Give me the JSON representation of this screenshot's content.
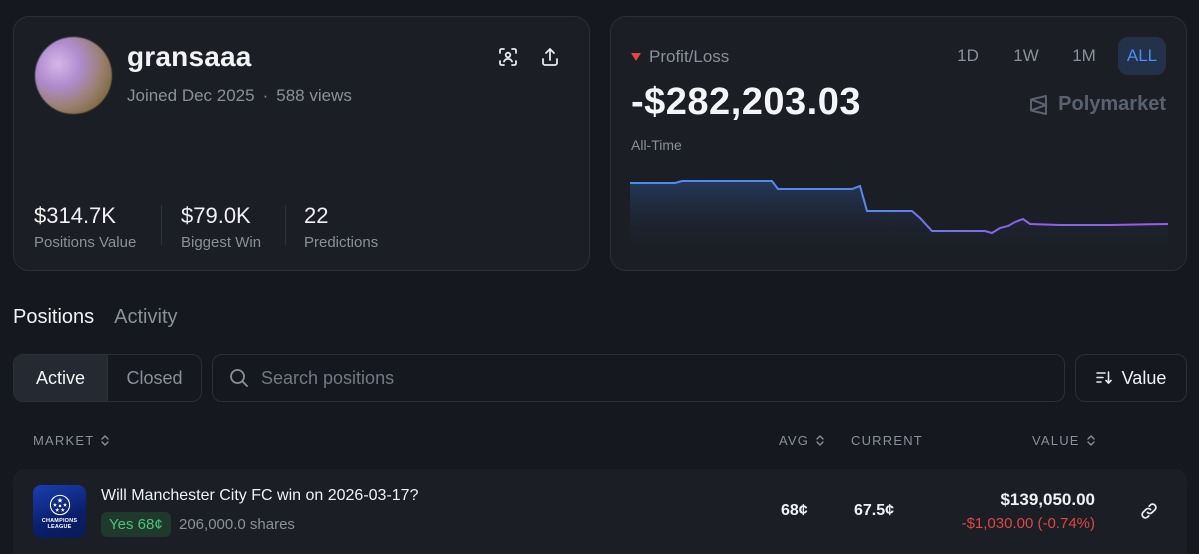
{
  "profile": {
    "username": "gransaaa",
    "joined": "Joined Dec 2025",
    "separator": "·",
    "views": "588 views",
    "actions": [
      {
        "name": "scan-icon"
      },
      {
        "name": "share-icon"
      }
    ],
    "stats": [
      {
        "value": "$314.7K",
        "label": "Positions Value"
      },
      {
        "value": "$79.0K",
        "label": "Biggest Win"
      },
      {
        "value": "22",
        "label": "Predictions"
      }
    ]
  },
  "pnl": {
    "title": "Profit/Loss",
    "trend_color": "#e0473f",
    "amount": "-$282,203.03",
    "period_label": "All-Time",
    "brand": "Polymarket",
    "ranges": [
      "1D",
      "1W",
      "1M",
      "ALL"
    ],
    "active_range": "ALL",
    "accent": "#4b8df3"
  },
  "tabs": {
    "positions": "Positions",
    "activity": "Activity"
  },
  "filter": {
    "active": "Active",
    "closed": "Closed"
  },
  "search": {
    "placeholder": "Search positions",
    "value": ""
  },
  "sort": {
    "label": "Value"
  },
  "table": {
    "headers": {
      "market": "MARKET",
      "avg": "AVG",
      "current": "CURRENT",
      "value": "VALUE"
    },
    "rows": [
      {
        "logo_text": "CHAMPIONS LEAGUE",
        "title": "Will Manchester City FC win on 2026-03-17?",
        "outcome": "Yes 68¢",
        "shares": "206,000.0 shares",
        "avg": "68¢",
        "current": "67.5¢",
        "value": "$139,050.00",
        "pnl": "-$1,030.00 (-0.74%)"
      }
    ]
  }
}
